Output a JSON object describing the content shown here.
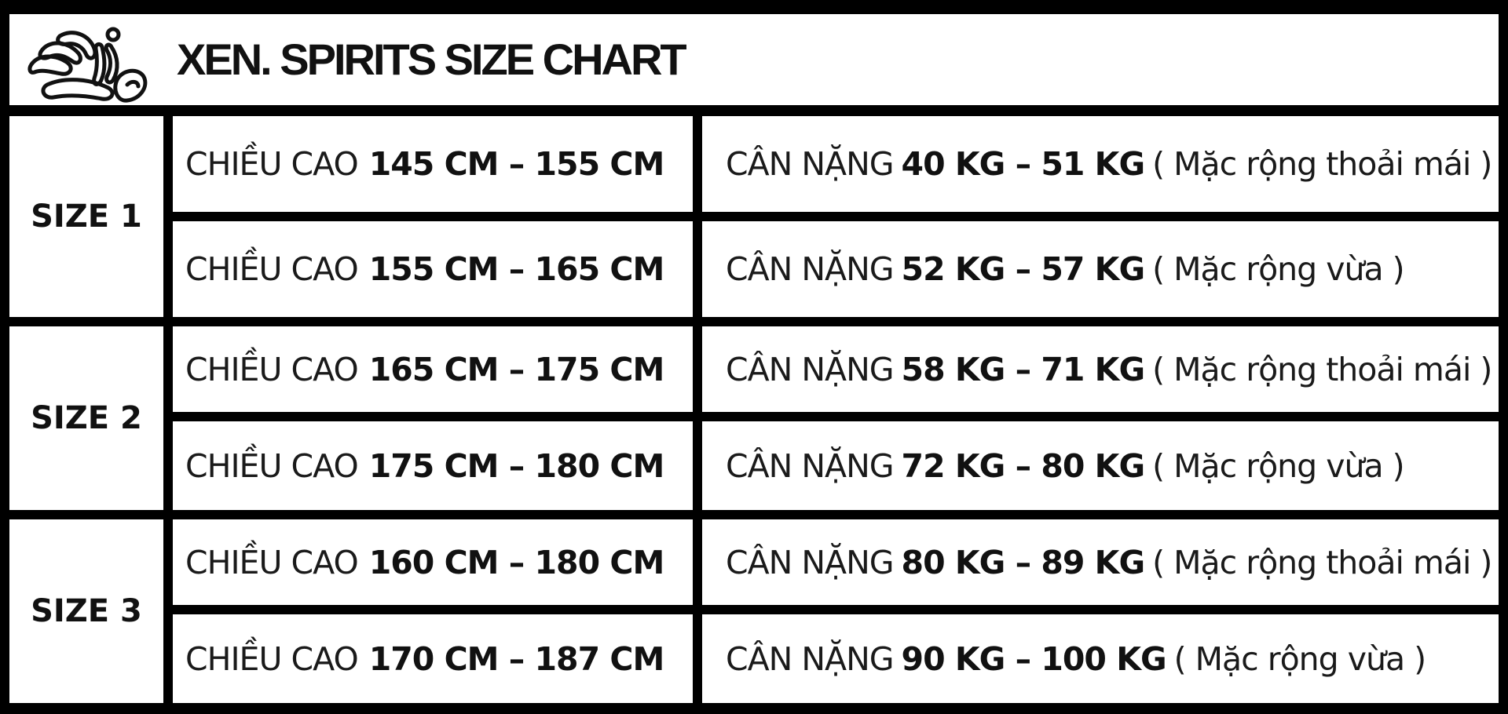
{
  "header": {
    "title": "XEN. SPIRITS SIZE CHART"
  },
  "table": {
    "groups": [
      {
        "label": "SIZE 1",
        "rows": [
          {
            "height_label": "CHIỀU CAO",
            "height_range": "145 CM – 155 CM",
            "weight_label": "CÂN NẶNG",
            "weight_range": "40 KG – 51 KG",
            "fit_note": "( Mặc rộng thoải mái )"
          },
          {
            "height_label": "CHIỀU CAO",
            "height_range": "155 CM – 165 CM",
            "weight_label": "CÂN NẶNG",
            "weight_range": "52 KG – 57 KG",
            "fit_note": "( Mặc rộng vừa )"
          }
        ]
      },
      {
        "label": "SIZE 2",
        "rows": [
          {
            "height_label": "CHIỀU CAO",
            "height_range": "165 CM – 175 CM",
            "weight_label": "CÂN NẶNG",
            "weight_range": "58 KG – 71 KG",
            "fit_note": "( Mặc rộng thoải mái )"
          },
          {
            "height_label": "CHIỀU CAO",
            "height_range": "175 CM – 180 CM",
            "weight_label": "CÂN NẶNG",
            "weight_range": "72 KG – 80 KG",
            "fit_note": "( Mặc rộng vừa )"
          }
        ]
      },
      {
        "label": "SIZE 3",
        "rows": [
          {
            "height_label": "CHIỀU CAO",
            "height_range": "160 CM – 180 CM",
            "weight_label": "CÂN NẶNG",
            "weight_range": "80 KG – 89 KG",
            "fit_note": "( Mặc rộng thoải mái )"
          },
          {
            "height_label": "CHIỀU CAO",
            "height_range": "170 CM – 187 CM",
            "weight_label": "CÂN NẶNG",
            "weight_range": "90 KG – 100 KG",
            "fit_note": "( Mặc rộng vừa )"
          }
        ]
      }
    ]
  },
  "colors": {
    "border": "#000000",
    "cell_background": "#ffffff",
    "text": "#111111"
  },
  "icons": {
    "logo": "brand-logo"
  }
}
